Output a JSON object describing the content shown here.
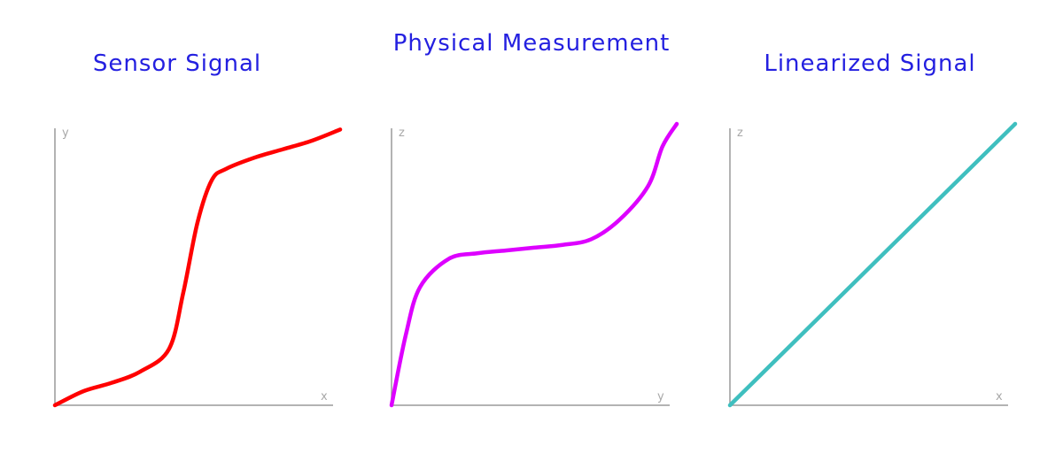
{
  "chart_data": [
    {
      "type": "line",
      "title": "Sensor Signal",
      "xlabel": "x",
      "ylabel": "y",
      "xlim": [
        0,
        1
      ],
      "ylim": [
        0,
        1
      ],
      "grid": false,
      "series": [
        {
          "color": "#ff0000",
          "x": [
            0.0,
            0.1,
            0.2,
            0.3,
            0.4,
            0.45,
            0.5,
            0.55,
            0.6,
            0.7,
            0.8,
            0.9,
            1.0
          ],
          "y": [
            0.0,
            0.05,
            0.08,
            0.12,
            0.2,
            0.4,
            0.65,
            0.8,
            0.84,
            0.88,
            0.91,
            0.94,
            0.98
          ]
        }
      ]
    },
    {
      "type": "line",
      "title": "Physical Measurement",
      "xlabel": "y",
      "ylabel": "z",
      "xlim": [
        0,
        1
      ],
      "ylim": [
        0,
        1
      ],
      "grid": false,
      "series": [
        {
          "color": "#dd00ff",
          "x": [
            0.0,
            0.05,
            0.1,
            0.2,
            0.3,
            0.4,
            0.5,
            0.6,
            0.7,
            0.8,
            0.9,
            0.95,
            1.0
          ],
          "y": [
            0.0,
            0.25,
            0.42,
            0.52,
            0.54,
            0.55,
            0.56,
            0.57,
            0.59,
            0.66,
            0.78,
            0.92,
            1.0
          ]
        }
      ]
    },
    {
      "type": "line",
      "title": "Linearized Signal",
      "xlabel": "x",
      "ylabel": "z",
      "xlim": [
        0,
        1
      ],
      "ylim": [
        0,
        1
      ],
      "grid": false,
      "series": [
        {
          "color": "#3fbfbf",
          "x": [
            0.0,
            1.0
          ],
          "y": [
            0.0,
            1.0
          ]
        }
      ]
    }
  ]
}
